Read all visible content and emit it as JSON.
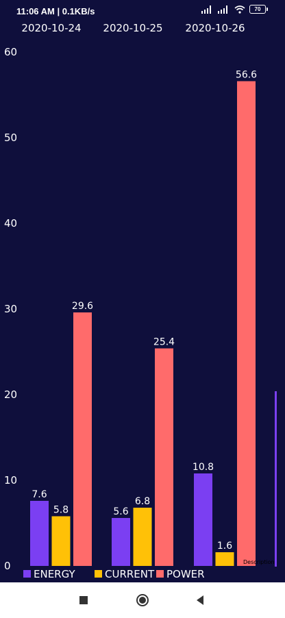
{
  "status_bar": {
    "time_speed": "11:06 AM | 0.1KB/s",
    "battery": "70"
  },
  "chart_data": {
    "type": "bar",
    "categories": [
      "2020-10-24",
      "2020-10-25",
      "2020-10-26"
    ],
    "series": [
      {
        "name": "ENERGY",
        "values": [
          7.6,
          5.6,
          10.8
        ]
      },
      {
        "name": "CURRENT",
        "values": [
          5.8,
          6.8,
          1.6
        ]
      },
      {
        "name": "POWER",
        "values": [
          29.6,
          25.4,
          56.6
        ]
      }
    ],
    "y_ticks": [
      0,
      10,
      20,
      30,
      40,
      50,
      60
    ],
    "ylim": [
      0,
      60
    ],
    "legend_position": "bottom-left",
    "description_label": "Description",
    "colors": {
      "ENERGY": "#7b3ff2",
      "CURRENT": "#ffc107",
      "POWER": "#ff6b6b",
      "background": "#0f0f3c",
      "text": "#ffffff"
    },
    "grid": false
  },
  "nav": {
    "icons": [
      "square-icon",
      "circle-icon",
      "triangle-back-icon"
    ]
  }
}
